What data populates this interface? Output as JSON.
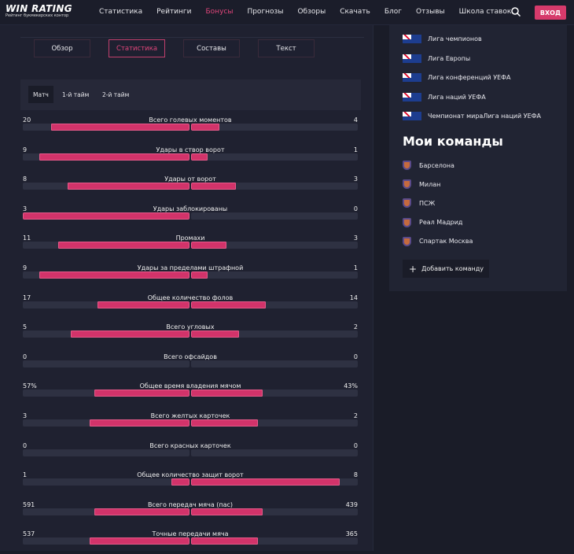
{
  "header": {
    "logo_title": "WIN RATING",
    "logo_subtitle": "Рейтинг букмекерских контор",
    "nav": [
      "Статистика",
      "Рейтинги",
      "Бонусы",
      "Прогнозы",
      "Обзоры",
      "Скачать",
      "Блог",
      "Отзывы",
      "Школа ставок"
    ],
    "active_nav": 2,
    "login": "ВХОД"
  },
  "tabs": [
    "Обзор",
    "Статистика",
    "Составы",
    "Текст"
  ],
  "active_tab": 1,
  "periods": [
    "Матч",
    "1-й тайм",
    "2-й тайм"
  ],
  "active_period": 0,
  "colors": {
    "accent": "#d2336a",
    "track": "#2e3142",
    "background": "#1f2130"
  },
  "stats": [
    {
      "label": "Всего голевых моментов",
      "left": "20",
      "right": "4",
      "left_fill": 0.83,
      "right_fill": 0.17
    },
    {
      "label": "Удары в створ ворот",
      "left": "9",
      "right": "1",
      "left_fill": 0.9,
      "right_fill": 0.1
    },
    {
      "label": "Удары от ворот",
      "left": "8",
      "right": "3",
      "left_fill": 0.73,
      "right_fill": 0.27
    },
    {
      "label": "Удары заблокированы",
      "left": "3",
      "right": "0",
      "left_fill": 1.0,
      "right_fill": 0
    },
    {
      "label": "Промахи",
      "left": "11",
      "right": "3",
      "left_fill": 0.79,
      "right_fill": 0.21
    },
    {
      "label": "Удары за пределами штрафной",
      "left": "9",
      "right": "1",
      "left_fill": 0.9,
      "right_fill": 0.1
    },
    {
      "label": "Общее количество фолов",
      "left": "17",
      "right": "14",
      "left_fill": 0.55,
      "right_fill": 0.45
    },
    {
      "label": "Всего угловых",
      "left": "5",
      "right": "2",
      "left_fill": 0.71,
      "right_fill": 0.29
    },
    {
      "label": "Всего офсайдов",
      "left": "0",
      "right": "0",
      "left_fill": 0,
      "right_fill": 0
    },
    {
      "label": "Общее время владения мячом",
      "left": "57%",
      "right": "43%",
      "left_fill": 0.57,
      "right_fill": 0.43
    },
    {
      "label": "Всего желтых карточек",
      "left": "3",
      "right": "2",
      "left_fill": 0.6,
      "right_fill": 0.4
    },
    {
      "label": "Всего красных карточек",
      "left": "0",
      "right": "0",
      "left_fill": 0,
      "right_fill": 0
    },
    {
      "label": "Общее количество защит ворот",
      "left": "1",
      "right": "8",
      "left_fill": 0.11,
      "right_fill": 0.89
    },
    {
      "label": "Всего передач мяча (пас)",
      "left": "591",
      "right": "439",
      "left_fill": 0.57,
      "right_fill": 0.43
    },
    {
      "label": "Точные передачи мяча",
      "left": "537",
      "right": "365",
      "left_fill": 0.6,
      "right_fill": 0.4
    }
  ],
  "sidebar": {
    "leagues": [
      "Лига чемпионов",
      "Лига Европы",
      "Лига конференций УЕФА",
      "Лига наций УЕФА",
      "Чемпионат мираЛига наций УЕФА"
    ],
    "my_teams_title": "Мои команды",
    "teams": [
      "Барселона",
      "Милан",
      "ПСЖ",
      "Реал Мадрид",
      "Спартак Москва"
    ],
    "add_team": "Добавить команду"
  }
}
